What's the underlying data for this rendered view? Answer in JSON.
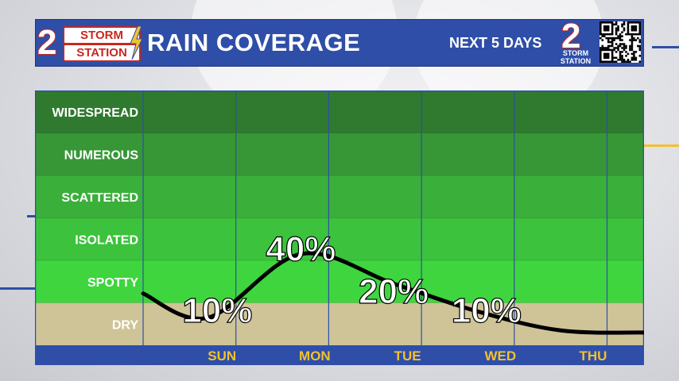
{
  "header": {
    "logo_number": "2",
    "logo_line1": "STORM",
    "logo_line2": "STATION",
    "title": "RAIN COVERAGE",
    "subtitle": "NEXT 5 DAYS",
    "badge_number": "2",
    "badge_line1": "STORM",
    "badge_line2": "STATION",
    "qr_code": "qr-code-icon"
  },
  "colors": {
    "header_bg": "#2e4ea8",
    "label_text": "#ffffff",
    "day_text": "#f2c12e",
    "dry_band": "#cfc497",
    "curve": "#000000"
  },
  "chart_data": {
    "type": "line",
    "title": "RAIN COVERAGE",
    "y_categories": [
      "DRY",
      "SPOTTY",
      "ISOLATED",
      "SCATTERED",
      "NUMEROUS",
      "WIDESPREAD"
    ],
    "x_labels": [
      "SUN",
      "MON",
      "TUE",
      "WED",
      "THU"
    ],
    "curve_x": [
      0.0,
      0.7,
      1.7,
      2.7,
      3.6,
      4.5,
      5.4
    ],
    "curve_y": [
      0.72,
      0.15,
      1.65,
      0.95,
      0.3,
      -0.15,
      -0.2
    ],
    "data_labels": [
      {
        "text": "10%",
        "x": 0.8,
        "y": 0.3
      },
      {
        "text": "40%",
        "x": 1.7,
        "y": 1.75
      },
      {
        "text": "20%",
        "x": 2.7,
        "y": 0.75
      },
      {
        "text": "10%",
        "x": 3.7,
        "y": 0.3
      }
    ],
    "grid": true
  }
}
